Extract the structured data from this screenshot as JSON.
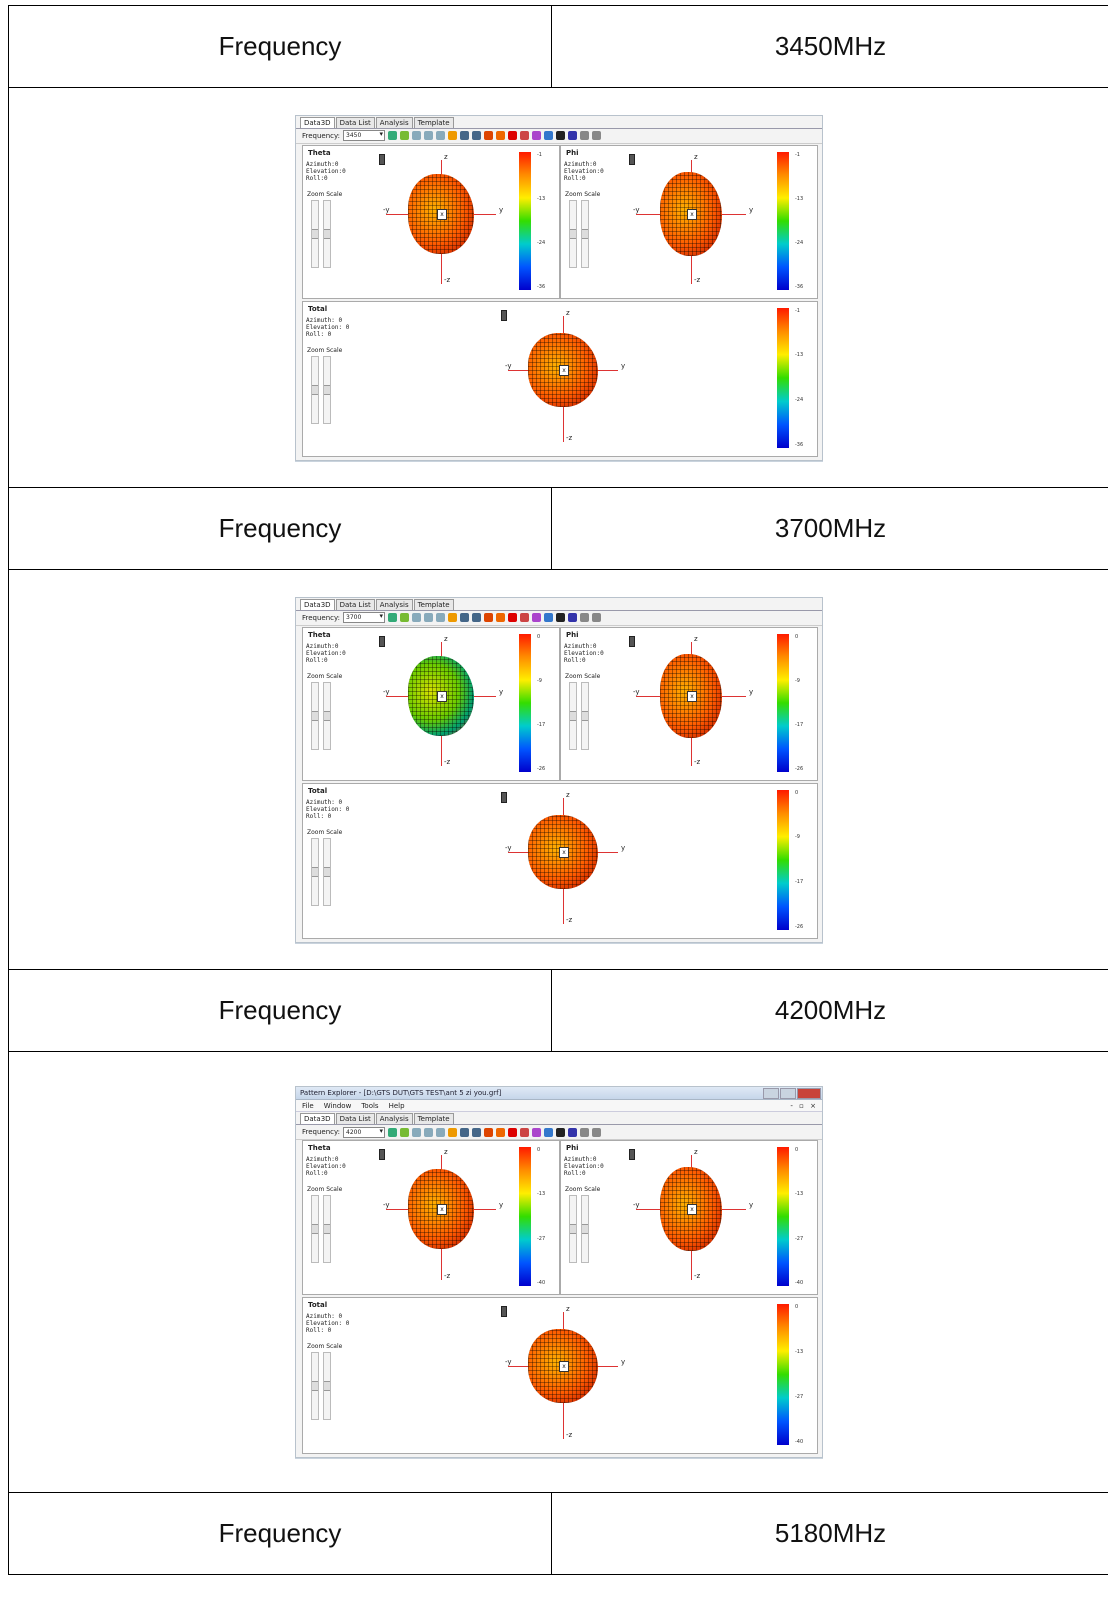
{
  "rows": [
    {
      "label": "Frequency",
      "value": "3450MHz"
    },
    {
      "label": "Frequency",
      "value": "3700MHz"
    },
    {
      "label": "Frequency",
      "value": "4200MHz"
    },
    {
      "label": "Frequency",
      "value": "5180MHz"
    }
  ],
  "shots": [
    {
      "frequency": "3450",
      "tabs": [
        "Data3D",
        "Data List",
        "Analysis",
        "Template"
      ],
      "frequency_label": "Frequency:",
      "panes": {
        "theta": {
          "title": "Theta",
          "params": "Azimuth:0\nElevation:0\nRoll:0",
          "ticks": [
            "-1",
            "-13",
            "-24",
            "-36"
          ]
        },
        "phi": {
          "title": "Phi",
          "params": "Azimuth:0\nElevation:0\nRoll:0",
          "ticks": [
            "-1",
            "-13",
            "-24",
            "-36"
          ]
        },
        "total": {
          "title": "Total",
          "params": "Azimuth: 0\nElevation: 0\nRoll: 0",
          "ticks": [
            "-1",
            "-13",
            "-24",
            "-36"
          ]
        }
      },
      "zoom_label": "Zoom Scale"
    },
    {
      "frequency": "3700",
      "tabs": [
        "Data3D",
        "Data List",
        "Analysis",
        "Template"
      ],
      "frequency_label": "Frequency:",
      "panes": {
        "theta": {
          "title": "Theta",
          "params": "Azimuth:0\nElevation:0\nRoll:0",
          "ticks": [
            "0",
            "-9",
            "-17",
            "-26"
          ]
        },
        "phi": {
          "title": "Phi",
          "params": "Azimuth:0\nElevation:0\nRoll:0",
          "ticks": [
            "0",
            "-9",
            "-17",
            "-26"
          ]
        },
        "total": {
          "title": "Total",
          "params": "Azimuth: 0\nElevation: 0\nRoll: 0",
          "ticks": [
            "0",
            "-9",
            "-17",
            "-26"
          ]
        }
      },
      "zoom_label": "Zoom Scale"
    },
    {
      "frequency": "4200",
      "window_title": "Pattern Explorer - [D:\\GTS DUT\\GTS TEST\\ant 5 zi you.grf]",
      "menu": [
        "File",
        "Window",
        "Tools",
        "Help"
      ],
      "menu_right": "- ▫ ×",
      "tabs": [
        "Data3D",
        "Data List",
        "Analysis",
        "Template"
      ],
      "frequency_label": "Frequency:",
      "panes": {
        "theta": {
          "title": "Theta",
          "params": "Azimuth:0\nElevation:0\nRoll:0",
          "ticks": [
            "0",
            "-13",
            "-27",
            "-40"
          ]
        },
        "phi": {
          "title": "Phi",
          "params": "Azimuth:0\nElevation:0\nRoll:0",
          "ticks": [
            "0",
            "-13",
            "-27",
            "-40"
          ]
        },
        "total": {
          "title": "Total",
          "params": "Azimuth: 0\nElevation: 0\nRoll: 0",
          "ticks": [
            "0",
            "-13",
            "-27",
            "-40"
          ]
        }
      },
      "zoom_label": "Zoom Scale"
    }
  ],
  "axis_labels": {
    "z": "z",
    "neg_z": "-z",
    "y": "y",
    "neg_y": "-y",
    "x": "x"
  },
  "colors": {
    "border": "#000000",
    "axis": "#dd3333"
  }
}
